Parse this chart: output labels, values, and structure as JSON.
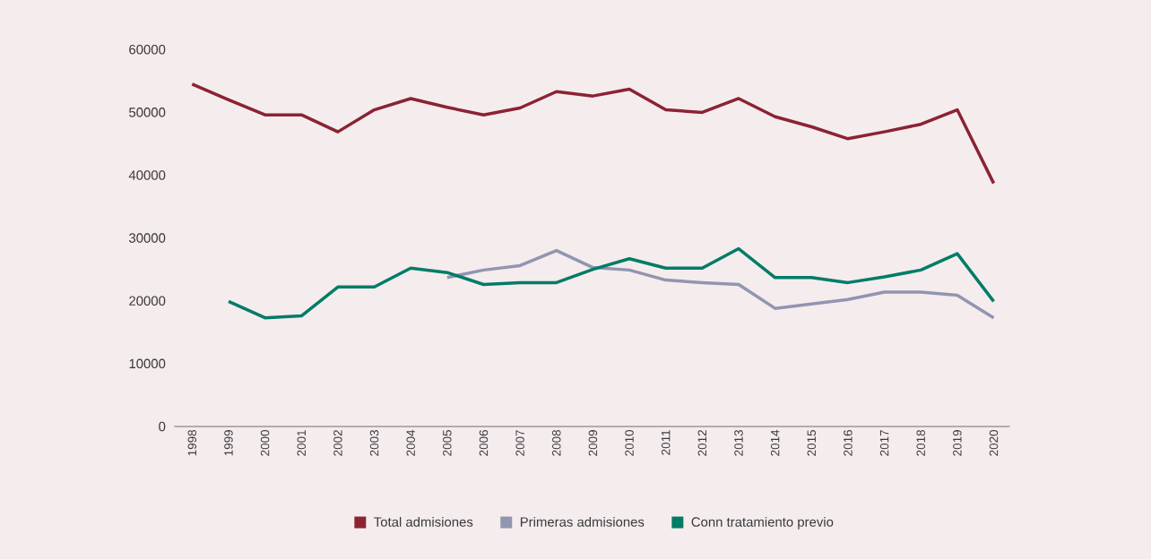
{
  "chart_data": {
    "type": "line",
    "categories": [
      "1998",
      "1999",
      "2000",
      "2001",
      "2002",
      "2003",
      "2004",
      "2005",
      "2006",
      "2007",
      "2008",
      "2009",
      "2010",
      "2011",
      "2012",
      "2013",
      "2014",
      "2015",
      "2016",
      "2017",
      "2018",
      "2019",
      "2020"
    ],
    "series": [
      {
        "name": "Total admisiones",
        "color": "#8b2332",
        "values": [
          54500,
          52000,
          49600,
          49600,
          46900,
          50400,
          52200,
          50800,
          49600,
          50700,
          53300,
          52600,
          53700,
          50400,
          50000,
          52200,
          49300,
          47700,
          45800,
          46900,
          48100,
          50400,
          38700
        ]
      },
      {
        "name": "Primeras admisiones",
        "color": "#9195b0",
        "values": [
          null,
          null,
          null,
          null,
          null,
          null,
          null,
          23700,
          24900,
          25600,
          28000,
          25300,
          24900,
          23300,
          22900,
          22600,
          18800,
          19500,
          20200,
          21400,
          21400,
          20900,
          17300
        ]
      },
      {
        "name": "Conn tratamiento previo",
        "color": "#007c66",
        "values": [
          null,
          19900,
          17300,
          17600,
          22200,
          22200,
          25200,
          24500,
          22600,
          22900,
          22900,
          25000,
          26700,
          25200,
          25200,
          28300,
          23700,
          23700,
          22900,
          23800,
          24900,
          27500,
          19900
        ]
      }
    ],
    "ylim": [
      0,
      60000
    ],
    "yticks": [
      0,
      10000,
      20000,
      30000,
      40000,
      50000,
      60000
    ],
    "legend": "bottom",
    "line_style": "solid"
  }
}
